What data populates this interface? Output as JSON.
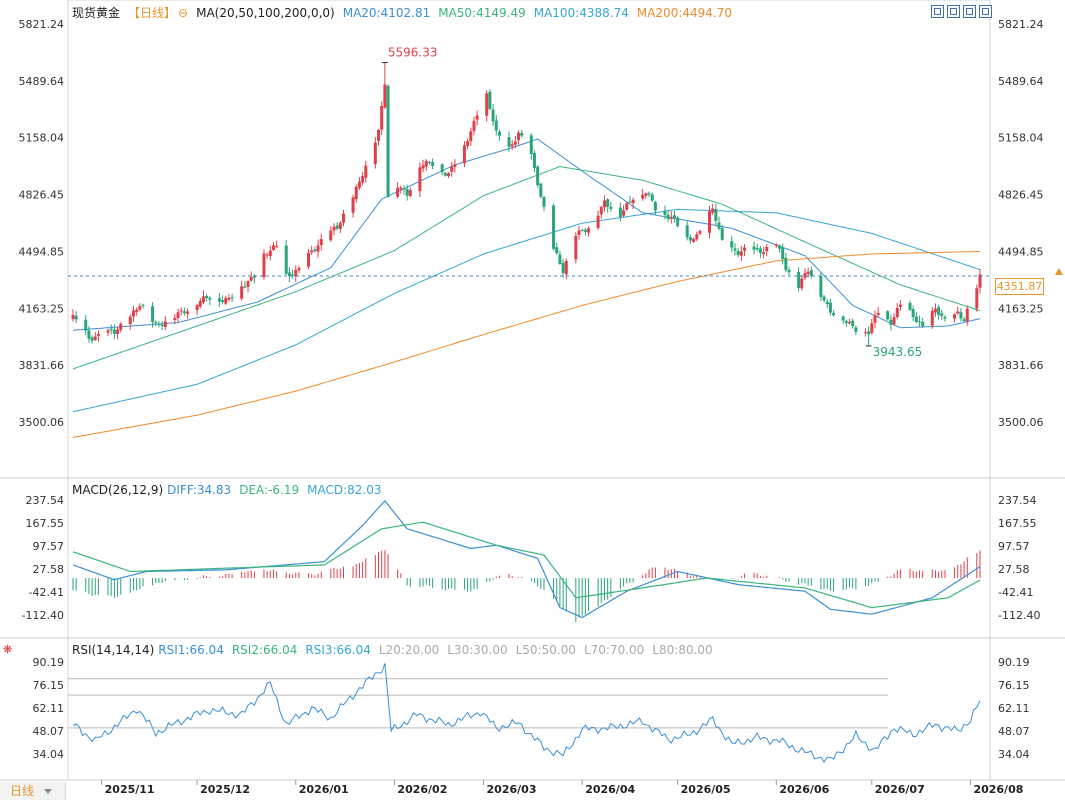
{
  "header": {
    "instrument": "现货黄金",
    "period": "【日线】",
    "ma_label": "MA(20,50,100,200,0,0)",
    "ma20": "MA20:4102.81",
    "ma50": "MA50:4149.49",
    "ma100": "MA100:4388.74",
    "ma200": "MA200:4494.70"
  },
  "macd_header": {
    "label": "MACD(26,12,9)",
    "diff": "DIFF:34.83",
    "dea": "DEA:-6.19",
    "macd": "MACD:82.03"
  },
  "rsi_header": {
    "label": "RSI(14,14,14)",
    "rsi1": "RSI1:66.04",
    "rsi2": "RSI2:66.04",
    "rsi3": "RSI3:66.04",
    "l20": "L20:20.00",
    "l30": "L30:30.00",
    "l50": "L50:50.00",
    "l70": "L70:70.00",
    "l80": "L80:80.00"
  },
  "current_price": "4351.87",
  "period_tab": "日线",
  "colors": {
    "up": "#e0404a",
    "down": "#2aa57a",
    "ma20": "#3b8fd6",
    "ma50": "#3bb57d",
    "ma100": "#37a6d6",
    "ma200": "#f08a2e",
    "dashed": "#3a86c8",
    "accent": "#e8962b"
  },
  "icons": [
    "zoom-in-icon",
    "zoom-out-icon",
    "chart-type-icon",
    "settings-icon"
  ],
  "chart_data": [
    {
      "type": "candlestick",
      "title": "现货黄金 日线",
      "y_ticks": [
        "5821.24",
        "5489.64",
        "5158.04",
        "4826.45",
        "4494.85",
        "4163.25",
        "3831.66",
        "3500.06"
      ],
      "x_ticks": [
        "2025/11",
        "2025/12",
        "2026/01",
        "2026/02",
        "2026/03",
        "2026/04",
        "2026/05",
        "2026/06",
        "2026/07",
        "2026/08"
      ],
      "x_range": [
        "2025-10-23",
        "2026-08-04"
      ],
      "ylim": [
        3500.06,
        5821.24
      ],
      "annotations": [
        {
          "text": "5596.33",
          "date": "2026-01-29",
          "value": 5596.33,
          "kind": "high"
        },
        {
          "text": "3943.65",
          "date": "2026-06-30",
          "value": 3943.65,
          "kind": "low"
        }
      ],
      "last_price": 4351.87,
      "anchors_close": [
        [
          "2025-10-23",
          4110
        ],
        [
          "2025-10-28",
          3990
        ],
        [
          "2025-10-31",
          4010
        ],
        [
          "2025-11-05",
          4020
        ],
        [
          "2025-11-10",
          4120
        ],
        [
          "2025-11-13",
          4180
        ],
        [
          "2025-11-18",
          4070
        ],
        [
          "2025-11-24",
          4110
        ],
        [
          "2025-12-01",
          4200
        ],
        [
          "2025-12-05",
          4220
        ],
        [
          "2025-12-11",
          4220
        ],
        [
          "2025-12-16",
          4300
        ],
        [
          "2025-12-19",
          4360
        ],
        [
          "2025-12-22",
          4470
        ],
        [
          "2025-12-26",
          4520
        ],
        [
          "2025-12-29",
          4360
        ],
        [
          "2026-01-02",
          4380
        ],
        [
          "2026-01-06",
          4500
        ],
        [
          "2026-01-09",
          4560
        ],
        [
          "2026-01-14",
          4630
        ],
        [
          "2026-01-19",
          4820
        ],
        [
          "2026-01-23",
          4980
        ],
        [
          "2026-01-27",
          5200
        ],
        [
          "2026-01-29",
          5490
        ],
        [
          "2026-01-30",
          4820
        ],
        [
          "2026-02-02",
          4870
        ],
        [
          "2026-02-05",
          4830
        ],
        [
          "2026-02-09",
          5000
        ],
        [
          "2026-02-13",
          5000
        ],
        [
          "2026-02-18",
          4950
        ],
        [
          "2026-02-23",
          5100
        ],
        [
          "2026-02-27",
          5300
        ],
        [
          "2026-03-02",
          5400
        ],
        [
          "2026-03-05",
          5180
        ],
        [
          "2026-03-09",
          5100
        ],
        [
          "2026-03-12",
          5180
        ],
        [
          "2026-03-16",
          5050
        ],
        [
          "2026-03-19",
          4830
        ],
        [
          "2026-03-23",
          4500
        ],
        [
          "2026-03-26",
          4380
        ],
        [
          "2026-03-30",
          4600
        ],
        [
          "2026-04-03",
          4620
        ],
        [
          "2026-04-08",
          4790
        ],
        [
          "2026-04-13",
          4700
        ],
        [
          "2026-04-17",
          4820
        ],
        [
          "2026-04-21",
          4840
        ],
        [
          "2026-04-24",
          4740
        ],
        [
          "2026-04-29",
          4700
        ],
        [
          "2026-05-04",
          4560
        ],
        [
          "2026-05-07",
          4590
        ],
        [
          "2026-05-12",
          4740
        ],
        [
          "2026-05-15",
          4550
        ],
        [
          "2026-05-20",
          4490
        ],
        [
          "2026-05-26",
          4500
        ],
        [
          "2026-06-01",
          4530
        ],
        [
          "2026-06-04",
          4400
        ],
        [
          "2026-06-08",
          4300
        ],
        [
          "2026-06-11",
          4380
        ],
        [
          "2026-06-15",
          4250
        ],
        [
          "2026-06-18",
          4150
        ],
        [
          "2026-06-23",
          4080
        ],
        [
          "2026-06-26",
          4050
        ],
        [
          "2026-06-30",
          4020
        ],
        [
          "2026-07-03",
          4140
        ],
        [
          "2026-07-07",
          4090
        ],
        [
          "2026-07-10",
          4180
        ],
        [
          "2026-07-14",
          4120
        ],
        [
          "2026-07-17",
          4060
        ],
        [
          "2026-07-21",
          4150
        ],
        [
          "2026-07-24",
          4090
        ],
        [
          "2026-07-28",
          4140
        ],
        [
          "2026-07-30",
          4090
        ],
        [
          "2026-08-03",
          4280
        ],
        [
          "2026-08-04",
          4351.87
        ]
      ],
      "moving_averages": [
        {
          "name": "MA20",
          "value": 4102.81,
          "anchors": [
            [
              "2025-10-23",
              4035
            ],
            [
              "2025-11-25",
              4080
            ],
            [
              "2025-12-20",
              4200
            ],
            [
              "2026-01-12",
              4400
            ],
            [
              "2026-01-28",
              4800
            ],
            [
              "2026-02-20",
              5000
            ],
            [
              "2026-03-10",
              5100
            ],
            [
              "2026-03-18",
              5150
            ],
            [
              "2026-04-02",
              4950
            ],
            [
              "2026-04-20",
              4720
            ],
            [
              "2026-05-18",
              4630
            ],
            [
              "2026-06-10",
              4470
            ],
            [
              "2026-06-25",
              4180
            ],
            [
              "2026-07-10",
              4050
            ],
            [
              "2026-07-25",
              4060
            ],
            [
              "2026-08-04",
              4102.81
            ]
          ]
        },
        {
          "name": "MA50",
          "value": 4149.49,
          "anchors": [
            [
              "2025-10-23",
              3810
            ],
            [
              "2025-12-01",
              4060
            ],
            [
              "2026-01-01",
              4260
            ],
            [
              "2026-02-01",
              4500
            ],
            [
              "2026-03-01",
              4820
            ],
            [
              "2026-03-25",
              4990
            ],
            [
              "2026-04-20",
              4910
            ],
            [
              "2026-05-15",
              4770
            ],
            [
              "2026-06-10",
              4550
            ],
            [
              "2026-07-10",
              4300
            ],
            [
              "2026-08-04",
              4149.49
            ]
          ]
        },
        {
          "name": "MA100",
          "value": 4388.74,
          "anchors": [
            [
              "2025-10-23",
              3560
            ],
            [
              "2025-12-01",
              3720
            ],
            [
              "2026-01-01",
              3950
            ],
            [
              "2026-02-01",
              4250
            ],
            [
              "2026-03-01",
              4480
            ],
            [
              "2026-04-01",
              4660
            ],
            [
              "2026-05-01",
              4740
            ],
            [
              "2026-06-01",
              4720
            ],
            [
              "2026-07-01",
              4600
            ],
            [
              "2026-08-04",
              4388.74
            ]
          ]
        },
        {
          "name": "MA200",
          "value": 4494.7,
          "anchors": [
            [
              "2025-10-23",
              3410
            ],
            [
              "2025-12-01",
              3540
            ],
            [
              "2026-01-01",
              3680
            ],
            [
              "2026-02-01",
              3850
            ],
            [
              "2026-03-01",
              4010
            ],
            [
              "2026-04-01",
              4180
            ],
            [
              "2026-05-01",
              4320
            ],
            [
              "2026-06-01",
              4440
            ],
            [
              "2026-07-01",
              4480
            ],
            [
              "2026-08-04",
              4494.7
            ]
          ]
        }
      ]
    },
    {
      "type": "line",
      "title": "MACD(26,12,9)",
      "y_ticks": [
        "237.54",
        "167.55",
        "97.57",
        "27.58",
        "-42.41",
        "-112.40"
      ],
      "ylim": [
        -112.4,
        237.54
      ],
      "series": [
        {
          "name": "DIFF",
          "value": 34.83,
          "anchors": [
            [
              "2025-10-23",
              40
            ],
            [
              "2025-11-05",
              -5
            ],
            [
              "2025-11-15",
              20
            ],
            [
              "2025-12-10",
              25
            ],
            [
              "2026-01-10",
              50
            ],
            [
              "2026-01-22",
              160
            ],
            [
              "2026-01-29",
              235
            ],
            [
              "2026-02-05",
              150
            ],
            [
              "2026-02-25",
              90
            ],
            [
              "2026-03-05",
              100
            ],
            [
              "2026-03-18",
              60
            ],
            [
              "2026-03-25",
              -90
            ],
            [
              "2026-04-01",
              -120
            ],
            [
              "2026-04-15",
              -40
            ],
            [
              "2026-05-01",
              20
            ],
            [
              "2026-05-20",
              -20
            ],
            [
              "2026-06-10",
              -40
            ],
            [
              "2026-06-18",
              -95
            ],
            [
              "2026-07-01",
              -110
            ],
            [
              "2026-07-20",
              -60
            ],
            [
              "2026-08-04",
              34.83
            ]
          ]
        },
        {
          "name": "DEA",
          "value": -6.19,
          "anchors": [
            [
              "2025-10-23",
              80
            ],
            [
              "2025-11-10",
              20
            ],
            [
              "2025-12-10",
              30
            ],
            [
              "2026-01-10",
              40
            ],
            [
              "2026-01-28",
              150
            ],
            [
              "2026-02-10",
              170
            ],
            [
              "2026-03-05",
              100
            ],
            [
              "2026-03-20",
              70
            ],
            [
              "2026-03-30",
              -60
            ],
            [
              "2026-04-20",
              -30
            ],
            [
              "2026-05-10",
              0
            ],
            [
              "2026-06-10",
              -30
            ],
            [
              "2026-07-01",
              -90
            ],
            [
              "2026-07-25",
              -60
            ],
            [
              "2026-08-04",
              -6.19
            ]
          ]
        },
        {
          "name": "MACD",
          "value": 82.03,
          "kind": "histogram",
          "anchors": [
            [
              "2025-10-23",
              -40
            ],
            [
              "2025-11-05",
              -60
            ],
            [
              "2025-11-20",
              -10
            ],
            [
              "2025-12-05",
              5
            ],
            [
              "2025-12-20",
              25
            ],
            [
              "2026-01-05",
              10
            ],
            [
              "2026-01-20",
              40
            ],
            [
              "2026-01-29",
              90
            ],
            [
              "2026-02-05",
              -20
            ],
            [
              "2026-02-25",
              -40
            ],
            [
              "2026-03-08",
              15
            ],
            [
              "2026-03-18",
              -20
            ],
            [
              "2026-03-30",
              -130
            ],
            [
              "2026-04-15",
              -20
            ],
            [
              "2026-04-25",
              40
            ],
            [
              "2026-05-05",
              10
            ],
            [
              "2026-05-15",
              -10
            ],
            [
              "2026-05-25",
              15
            ],
            [
              "2026-06-05",
              -10
            ],
            [
              "2026-06-20",
              -40
            ],
            [
              "2026-07-01",
              -20
            ],
            [
              "2026-07-10",
              25
            ],
            [
              "2026-07-25",
              20
            ],
            [
              "2026-08-04",
              82.03
            ]
          ]
        }
      ]
    },
    {
      "type": "line",
      "title": "RSI(14,14,14)",
      "y_ticks": [
        "90.19",
        "76.15",
        "62.11",
        "48.07",
        "34.04"
      ],
      "ylim": [
        34.04,
        90.19
      ],
      "reference_lines": [
        20,
        30,
        50,
        70,
        80
      ],
      "series": [
        {
          "name": "RSI1",
          "value": 66.04,
          "anchors": [
            [
              "2025-10-23",
              52
            ],
            [
              "2025-10-30",
              42
            ],
            [
              "2025-11-08",
              55
            ],
            [
              "2025-11-12",
              62
            ],
            [
              "2025-11-18",
              47
            ],
            [
              "2025-11-28",
              56
            ],
            [
              "2025-12-05",
              61
            ],
            [
              "2025-12-15",
              58
            ],
            [
              "2025-12-24",
              77
            ],
            [
              "2025-12-29",
              52
            ],
            [
              "2026-01-06",
              62
            ],
            [
              "2026-01-12",
              56
            ],
            [
              "2026-01-20",
              72
            ],
            [
              "2026-01-29",
              88
            ],
            [
              "2026-01-31",
              48
            ],
            [
              "2026-02-08",
              58
            ],
            [
              "2026-02-18",
              52
            ],
            [
              "2026-02-28",
              60
            ],
            [
              "2026-03-05",
              50
            ],
            [
              "2026-03-12",
              53
            ],
            [
              "2026-03-20",
              38
            ],
            [
              "2026-03-26",
              33
            ],
            [
              "2026-04-01",
              49
            ],
            [
              "2026-04-10",
              50
            ],
            [
              "2026-04-20",
              54
            ],
            [
              "2026-04-28",
              43
            ],
            [
              "2026-05-05",
              46
            ],
            [
              "2026-05-12",
              55
            ],
            [
              "2026-05-18",
              40
            ],
            [
              "2026-05-26",
              44
            ],
            [
              "2026-06-02",
              42
            ],
            [
              "2026-06-10",
              35
            ],
            [
              "2026-06-18",
              30
            ],
            [
              "2026-06-26",
              45
            ],
            [
              "2026-07-02",
              36
            ],
            [
              "2026-07-08",
              50
            ],
            [
              "2026-07-14",
              46
            ],
            [
              "2026-07-21",
              52
            ],
            [
              "2026-07-28",
              48
            ],
            [
              "2026-08-01",
              55
            ],
            [
              "2026-08-04",
              66.04
            ]
          ]
        }
      ]
    }
  ]
}
